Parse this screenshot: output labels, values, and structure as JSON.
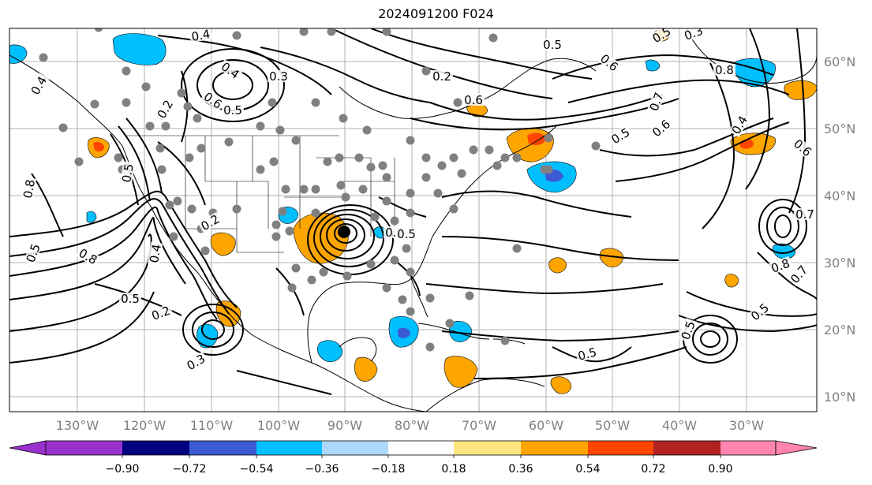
{
  "title": "2024091200 F024",
  "lat_labels": [
    "10°N",
    "20°N",
    "30°N",
    "40°N",
    "50°N",
    "60°N"
  ],
  "lon_labels": [
    "130°W",
    "120°W",
    "110°W",
    "100°W",
    "90°W",
    "80°W",
    "70°W",
    "60°W",
    "50°W",
    "40°W",
    "30°W"
  ],
  "colorbar": {
    "ticks": [
      "−0.90",
      "−0.72",
      "−0.54",
      "−0.36",
      "−0.18",
      "0.18",
      "0.36",
      "0.54",
      "0.72",
      "0.90"
    ],
    "colors": {
      "under": "#9932cc",
      "bins": [
        "#9932cc",
        "#000080",
        "#3b5bd4",
        "#00bfff",
        "#add8fd",
        "#ffffff",
        "#ffe680",
        "#ffa500",
        "#ff4500",
        "#b22222",
        "#ff85b0"
      ],
      "over": "#ff85b0"
    }
  },
  "contour_labels": [
    "0.4",
    "0.2",
    "0.4",
    "0.3",
    "0.6",
    "0.5",
    "0.2",
    "0.4",
    "0.8",
    "0.5",
    "0.5",
    "0.8",
    "0.5",
    "0.2",
    "0.3",
    "0.2",
    "0.2",
    "0.5",
    "0.3",
    "0.5",
    "0.6",
    "0.7",
    "0.8",
    "0.6",
    "0.5",
    "0.6",
    "0.4",
    "0.4",
    "0.8",
    "0.5",
    "0.5",
    "0.7",
    "0.6",
    "0.5",
    "0.5",
    "0.7"
  ],
  "hurricane_marker": "storm-center",
  "map": {
    "lon_range": [
      -140,
      -20
    ],
    "lat_range": [
      7,
      65
    ]
  }
}
